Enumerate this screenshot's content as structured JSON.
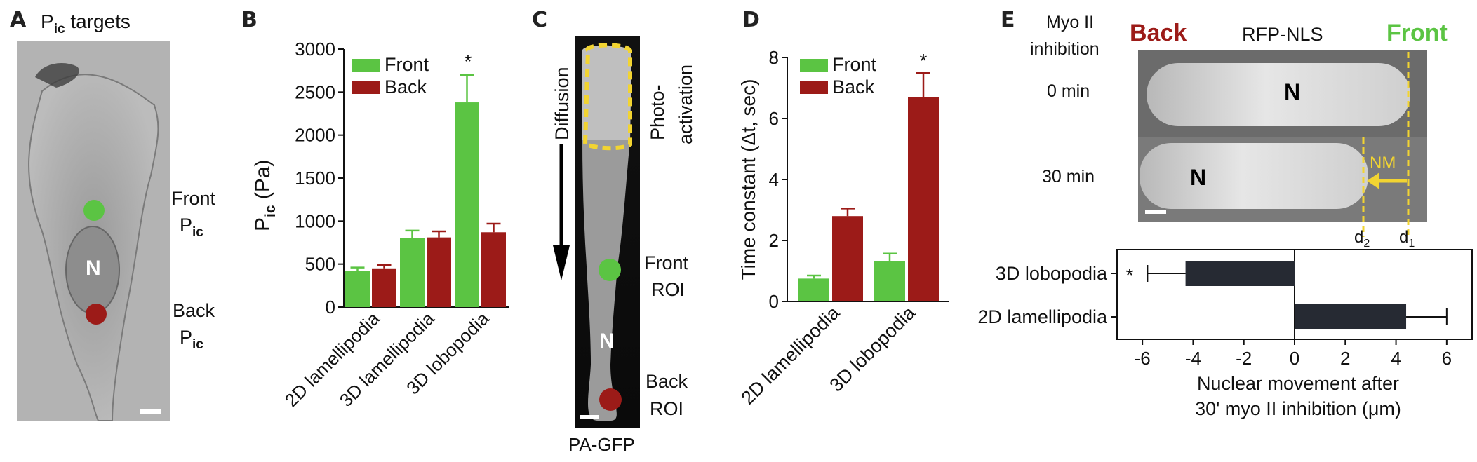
{
  "panels": {
    "A": {
      "letter": "A",
      "title_main": "P",
      "title_sub": "ic",
      "title_rest": " targets",
      "front_label": "Front",
      "front_sub_main": "P",
      "front_sub_sub": "ic",
      "back_label": "Back",
      "back_sub_main": "P",
      "back_sub_sub": "ic",
      "nucleus": "N"
    },
    "B": {
      "letter": "B"
    },
    "C": {
      "letter": "C",
      "diffusion": "Diffusion",
      "photo1": "Photo-",
      "photo2": "activation",
      "front1": "Front",
      "front2": "ROI",
      "back1": "Back",
      "back2": "ROI",
      "nucleus": "N",
      "caption": "PA-GFP"
    },
    "D": {
      "letter": "D"
    },
    "E": {
      "letter": "E",
      "myo1": "Myo II",
      "myo2": "inhibition",
      "back": "Back",
      "rfp": "RFP-NLS",
      "front": "Front",
      "t0": "0 min",
      "t30": "30 min",
      "nucleus": "N",
      "nm": "NM",
      "d2": "d",
      "d2sub": "2",
      "d1": "d",
      "d1sub": "1"
    }
  },
  "colors": {
    "front": "#5bc443",
    "back": "#9c1b18",
    "accent_yellow": "#f2d431",
    "bar_dark": "#262a33",
    "back_text": "#9c1b18",
    "front_text": "#5bc443"
  },
  "chart_data": [
    {
      "type": "bar",
      "panel": "B",
      "categories": [
        "2D lamellipodia",
        "3D lamellipodia",
        "3D lobopodia"
      ],
      "series": [
        {
          "name": "Front",
          "values": [
            420,
            800,
            2380
          ],
          "errors": [
            40,
            90,
            320
          ]
        },
        {
          "name": "Back",
          "values": [
            450,
            810,
            870
          ],
          "errors": [
            40,
            70,
            100
          ]
        }
      ],
      "ylabel_main": "P",
      "ylabel_sub": "ic",
      "ylabel_rest": " (Pa)",
      "ylim": [
        0,
        3000
      ],
      "yticks": [
        "0",
        "500",
        "1000",
        "1500",
        "2000",
        "2500",
        "3000"
      ],
      "annotations": [
        "*"
      ],
      "legend": "top-left"
    },
    {
      "type": "bar",
      "panel": "D",
      "categories": [
        "2D lamellipodia",
        "3D lobopodia"
      ],
      "series": [
        {
          "name": "Front",
          "values": [
            0.75,
            1.32
          ],
          "errors": [
            0.1,
            0.25
          ]
        },
        {
          "name": "Back",
          "values": [
            2.8,
            6.7
          ],
          "errors": [
            0.25,
            0.8
          ]
        }
      ],
      "ylabel": "Time constant (Δt, sec)",
      "ylim": [
        0,
        8
      ],
      "yticks": [
        "0",
        "2",
        "4",
        "6",
        "8"
      ],
      "annotations": [
        "*"
      ],
      "legend": "top-left"
    },
    {
      "type": "bar",
      "orientation": "horizontal",
      "panel": "E",
      "categories": [
        "3D lobopodia",
        "2D lamellipodia"
      ],
      "values": [
        -4.3,
        4.4
      ],
      "errors": [
        1.5,
        1.6
      ],
      "xlabel_line1": "Nuclear movement after",
      "xlabel_line2": "30' myo II inhibition (μm)",
      "xlim": [
        -7,
        7
      ],
      "xticks": [
        "-6",
        "-4",
        "-2",
        "0",
        "2",
        "4",
        "6"
      ],
      "annotations": [
        "*"
      ]
    }
  ]
}
